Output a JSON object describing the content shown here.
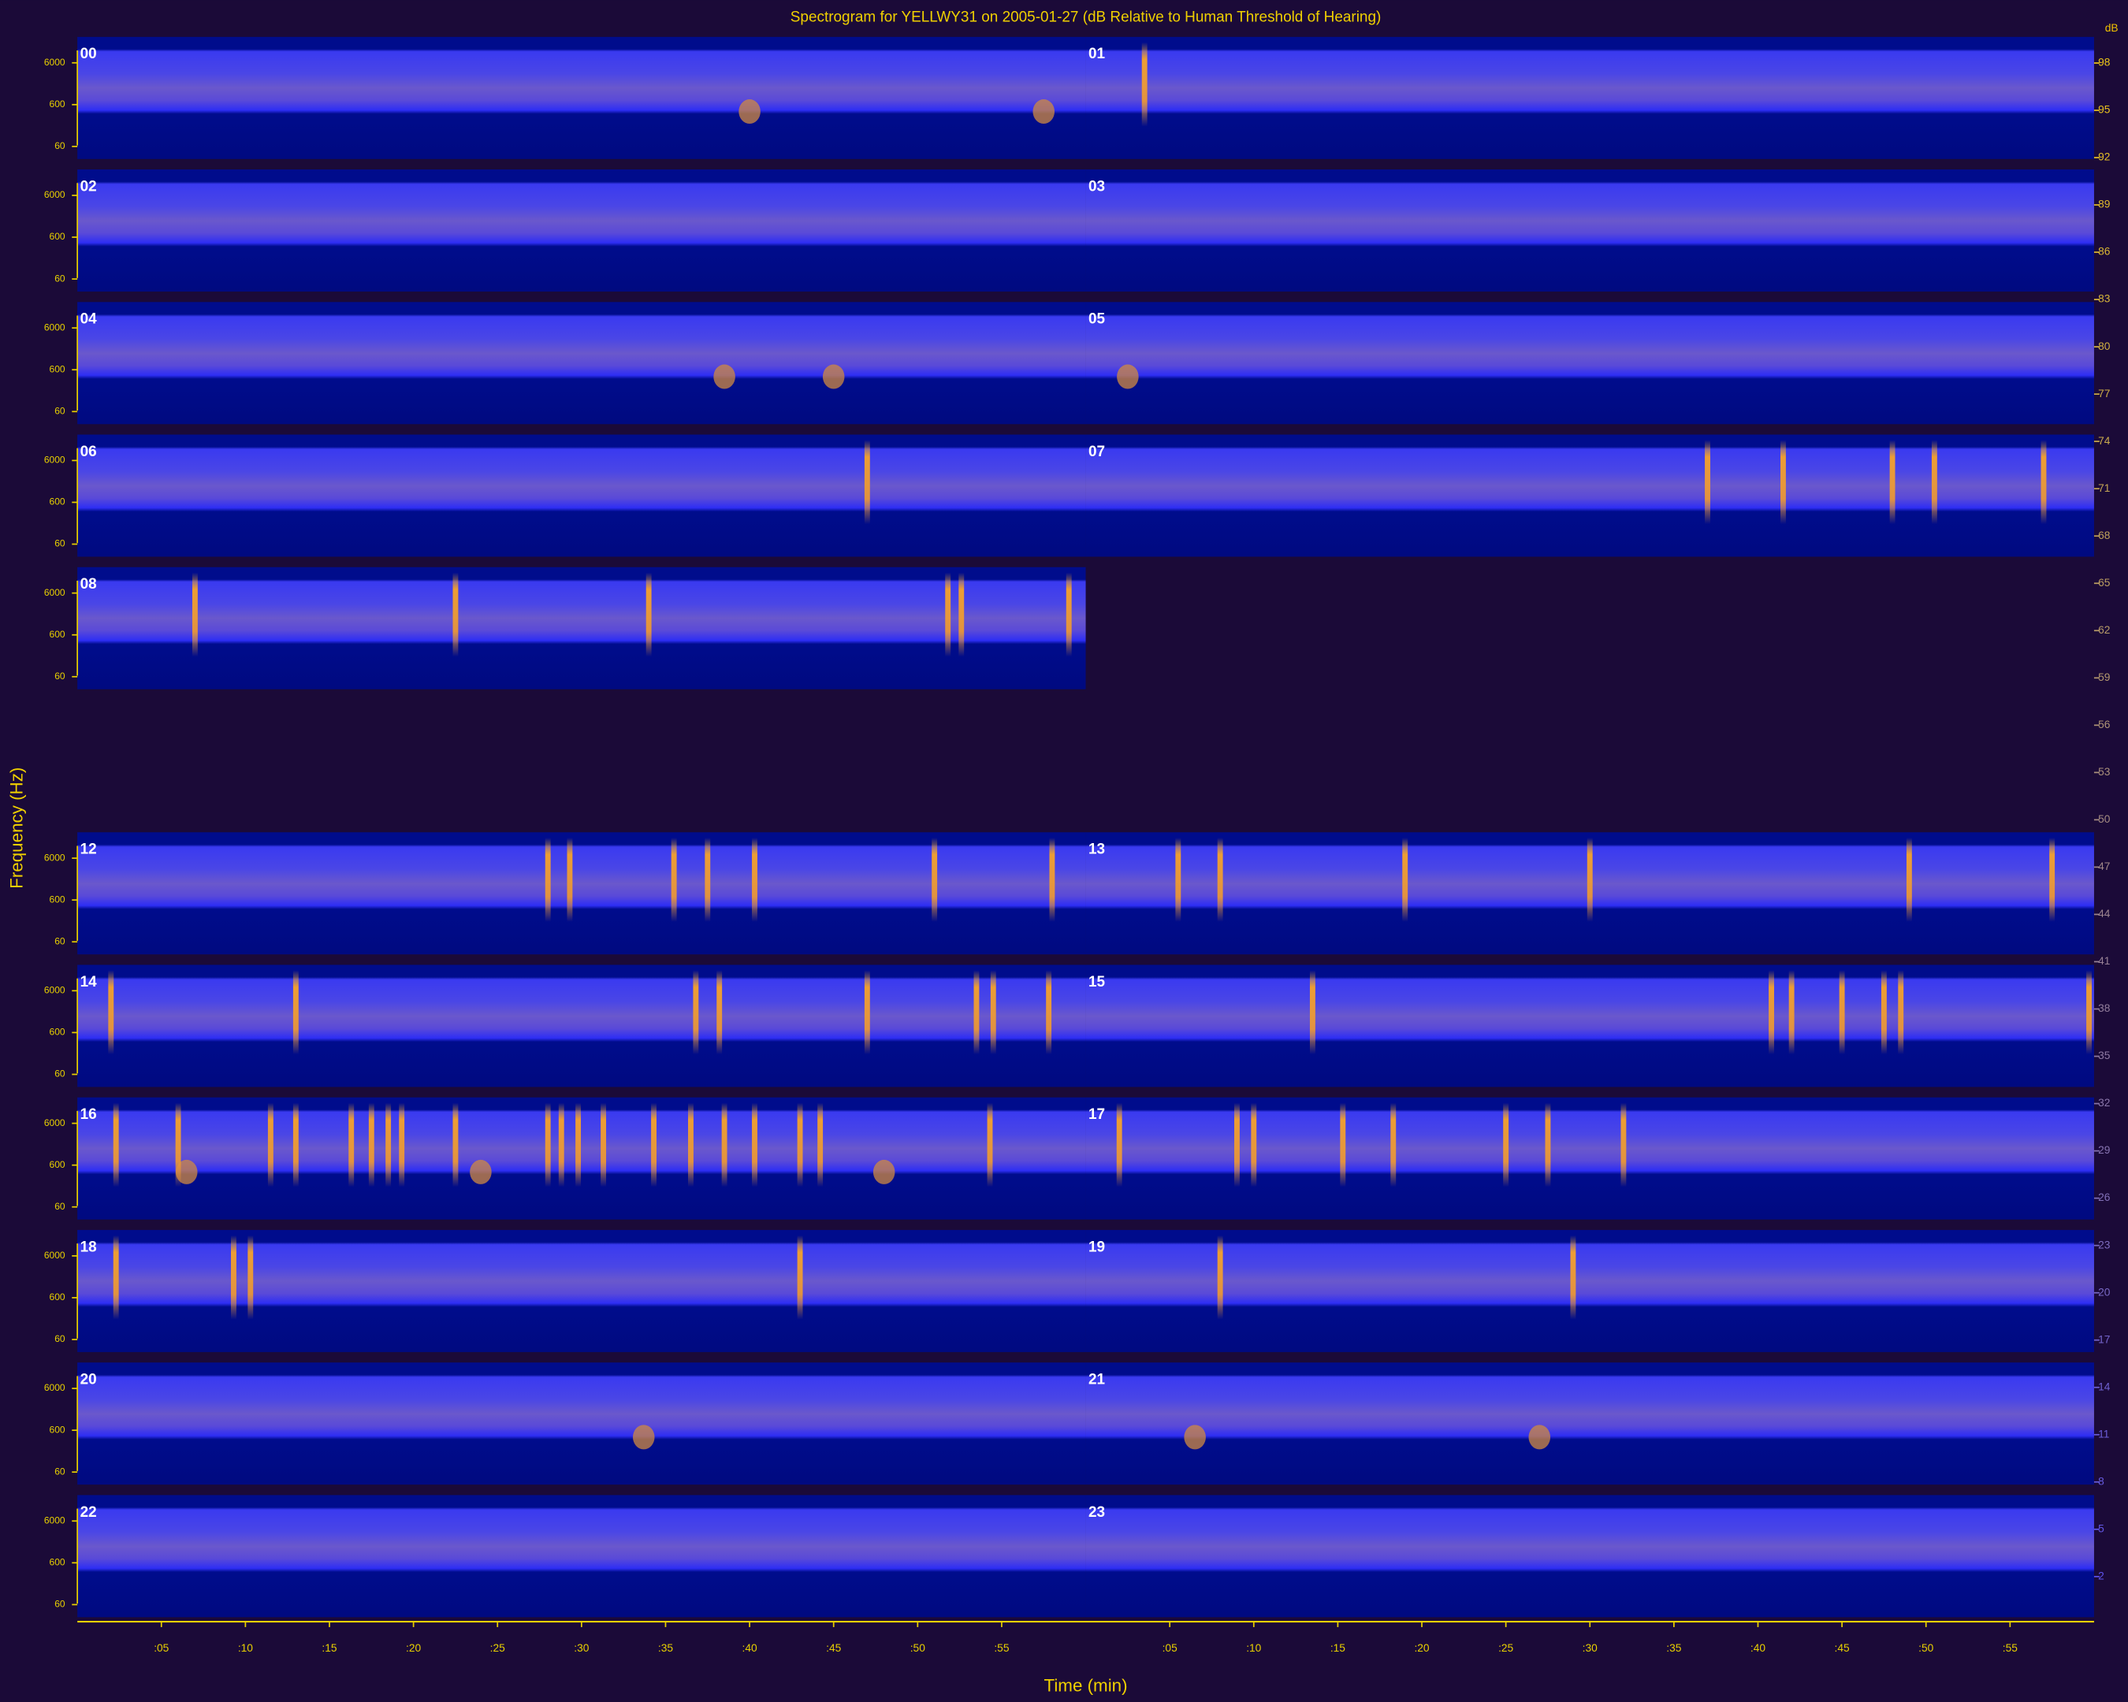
{
  "chart_data": {
    "type": "spectrogram",
    "title": "Spectrogram for YELLWY31 on 2005-01-27 (dB Relative to Human Threshold of Hearing)",
    "x_label": "Time (min)",
    "y_label": "Frequency (Hz)",
    "panels": [
      "00",
      "01",
      "02",
      "03",
      "04",
      "05",
      "06",
      "07",
      "08",
      "12",
      "13",
      "14",
      "15",
      "16",
      "17",
      "18",
      "19",
      "20",
      "21",
      "22",
      "23"
    ],
    "xlim": [
      0,
      60
    ],
    "xticks": [
      {
        "value": 5,
        "label": ":05"
      },
      {
        "value": 10,
        "label": ":10"
      },
      {
        "value": 15,
        "label": ":15"
      },
      {
        "value": 20,
        "label": ":20"
      },
      {
        "value": 25,
        "label": ":25"
      },
      {
        "value": 30,
        "label": ":30"
      },
      {
        "value": 35,
        "label": ":35"
      },
      {
        "value": 40,
        "label": ":40"
      },
      {
        "value": 45,
        "label": ":45"
      },
      {
        "value": 50,
        "label": ":50"
      },
      {
        "value": 55,
        "label": ":55"
      }
    ],
    "ylim": [
      30,
      25000
    ],
    "log_y": true,
    "yticks": [
      60,
      600,
      6000
    ],
    "colorbar_label": "dB",
    "clim": [
      0,
      100
    ],
    "cticks": [
      98,
      95,
      92,
      89,
      86,
      83,
      80,
      77,
      74,
      71,
      68,
      65,
      62,
      59,
      56,
      53,
      50,
      47,
      44,
      41,
      38,
      35,
      32,
      29,
      26,
      23,
      20,
      17,
      14,
      11,
      8,
      5,
      2
    ]
  }
}
